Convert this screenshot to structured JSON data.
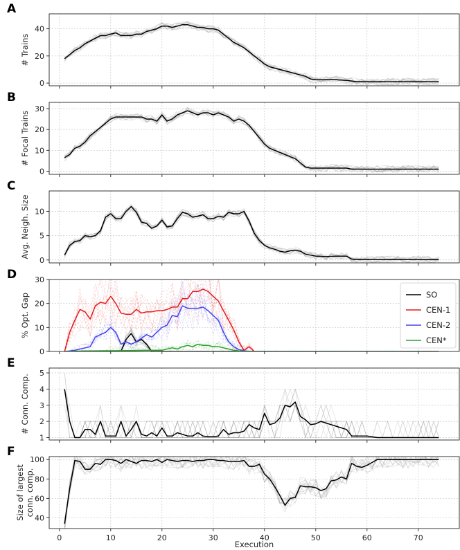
{
  "xlabel": "Execution",
  "x_ticks": [
    0,
    10,
    20,
    30,
    40,
    50,
    60,
    70
  ],
  "xlim": [
    -2,
    78
  ],
  "colors": {
    "SO": "#000000",
    "CEN-1": "#e31a1c",
    "CEN-2": "#4444ee",
    "CEN*": "#2ca02c",
    "runs": "#9a9a9a"
  },
  "chart_data": [
    {
      "letter": "A",
      "type": "line",
      "ylabel": "# Trains",
      "ylim": [
        -2,
        51
      ],
      "y_ticks": [
        0,
        20,
        40
      ],
      "series": [
        {
          "key": "SO",
          "x": [
            1,
            2,
            3,
            4,
            5,
            6,
            7,
            8,
            9,
            10,
            11,
            12,
            13,
            14,
            15,
            16,
            17,
            18,
            19,
            20,
            21,
            22,
            23,
            24,
            25,
            26,
            27,
            28,
            29,
            30,
            31,
            32,
            33,
            34,
            35,
            36,
            37,
            38,
            39,
            40,
            41,
            42,
            43,
            44,
            45,
            46,
            47,
            48,
            49,
            50,
            52,
            54,
            56,
            57,
            58,
            60,
            62,
            65,
            70,
            74
          ],
          "y": [
            18,
            21,
            24,
            26,
            29,
            31,
            33,
            35,
            35,
            36,
            37,
            35,
            35,
            35,
            36,
            36,
            38,
            39,
            40,
            42,
            42,
            41,
            42,
            43,
            43,
            42,
            41,
            41,
            40,
            40,
            39,
            36,
            33,
            30,
            28,
            26,
            23,
            20,
            17,
            14,
            12,
            11,
            10,
            9,
            8,
            7,
            6,
            5,
            3,
            2.5,
            2.5,
            2.5,
            2,
            1.5,
            1,
            1,
            1,
            1,
            1,
            1
          ]
        }
      ]
    },
    {
      "letter": "B",
      "type": "line",
      "ylabel": "# Focal Trains",
      "ylim": [
        -1.5,
        33
      ],
      "y_ticks": [
        0,
        10,
        20,
        30
      ],
      "series": [
        {
          "key": "SO",
          "x": [
            1,
            2,
            3,
            4,
            5,
            6,
            7,
            8,
            9,
            10,
            11,
            12,
            13,
            14,
            15,
            16,
            17,
            18,
            19,
            20,
            21,
            22,
            23,
            24,
            25,
            26,
            27,
            28,
            29,
            30,
            31,
            32,
            33,
            34,
            35,
            36,
            37,
            38,
            39,
            40,
            41,
            42,
            43,
            44,
            45,
            46,
            47,
            48,
            49,
            50,
            52,
            54,
            56,
            57,
            58,
            60,
            62,
            65,
            70,
            74
          ],
          "y": [
            6.5,
            8,
            11,
            12,
            14,
            17,
            19,
            21,
            23,
            25,
            26,
            26,
            26,
            26,
            26,
            26,
            25,
            25,
            24,
            27,
            24,
            25,
            27,
            28,
            29,
            28,
            27,
            28,
            28,
            27,
            28,
            27,
            26,
            24,
            25,
            24,
            22,
            19,
            16,
            13,
            11,
            10,
            9,
            8,
            7,
            6,
            4,
            2,
            1.5,
            1.5,
            1.5,
            1.5,
            1.5,
            1,
            1,
            1,
            1,
            1,
            1,
            1
          ]
        }
      ]
    },
    {
      "letter": "C",
      "type": "line",
      "ylabel": "Avg. Neigh. Size",
      "ylim": [
        -0.6,
        14.2
      ],
      "y_ticks": [
        0,
        5,
        10
      ],
      "series": [
        {
          "key": "SO",
          "x": [
            1,
            2,
            3,
            4,
            5,
            6,
            7,
            8,
            9,
            10,
            11,
            12,
            13,
            14,
            15,
            16,
            17,
            18,
            19,
            20,
            21,
            22,
            23,
            24,
            25,
            26,
            27,
            28,
            29,
            30,
            31,
            32,
            33,
            34,
            35,
            36,
            37,
            38,
            39,
            40,
            41,
            42,
            43,
            44,
            45,
            46,
            47,
            48,
            49,
            50,
            52,
            54,
            56,
            57,
            58,
            60,
            62,
            65,
            70,
            74
          ],
          "y": [
            1,
            3,
            3.8,
            4,
            5,
            4.8,
            5,
            6,
            8.8,
            9.5,
            8.5,
            8.5,
            10,
            11,
            9.8,
            7.8,
            7.5,
            6.5,
            7,
            8.2,
            6.8,
            7,
            8.5,
            9.8,
            9.5,
            8.8,
            9,
            9.3,
            8.5,
            8.5,
            9,
            8.8,
            9.8,
            9.5,
            9.5,
            10,
            8,
            5.5,
            4,
            3,
            2.5,
            2.2,
            1.8,
            1.6,
            1.9,
            2,
            1.8,
            1.2,
            1,
            0.8,
            0.7,
            0.8,
            0.8,
            0.2,
            0.1,
            0.1,
            0.1,
            0.1,
            0.1,
            0.1
          ]
        }
      ]
    },
    {
      "letter": "D",
      "type": "line",
      "ylabel": "% Opt. Gap",
      "ylim": [
        0,
        30
      ],
      "y_ticks": [
        0,
        10,
        20,
        30
      ],
      "legend": {
        "position": "top-right",
        "entries": [
          "SO",
          "CEN-1",
          "CEN-2",
          "CEN*"
        ]
      },
      "series": [
        {
          "key": "SO",
          "name": "SO",
          "x": [
            1,
            5,
            10,
            12,
            13,
            14,
            15,
            16,
            17,
            18,
            19,
            20,
            25,
            30,
            35,
            40,
            50,
            60,
            70,
            74
          ],
          "y": [
            0,
            0,
            0,
            0,
            5,
            7.5,
            4,
            5,
            3,
            0,
            0,
            0,
            0,
            0,
            0,
            0,
            0,
            0,
            0,
            0
          ]
        },
        {
          "key": "CEN-1",
          "name": "CEN-1",
          "x": [
            1,
            2,
            3,
            4,
            5,
            6,
            7,
            8,
            9,
            10,
            11,
            12,
            13,
            14,
            15,
            16,
            17,
            18,
            19,
            20,
            21,
            22,
            23,
            24,
            25,
            26,
            27,
            28,
            29,
            30,
            31,
            32,
            33,
            34,
            35,
            36,
            37,
            38,
            40,
            50,
            60,
            70,
            74
          ],
          "y": [
            0,
            8,
            13,
            17.5,
            16.5,
            13.5,
            19,
            20.5,
            20,
            23,
            20,
            16,
            15.5,
            15.5,
            17.5,
            16,
            16.5,
            16.5,
            17,
            17,
            17.5,
            18.5,
            18.5,
            22,
            22,
            25,
            25,
            26,
            25,
            23,
            21,
            17,
            13,
            9,
            4,
            0.5,
            2,
            0,
            0,
            0,
            0,
            0,
            0
          ]
        },
        {
          "key": "CEN-2",
          "name": "CEN-2",
          "x": [
            1,
            2,
            3,
            4,
            5,
            6,
            7,
            8,
            9,
            10,
            11,
            12,
            13,
            14,
            15,
            16,
            17,
            18,
            19,
            20,
            21,
            22,
            23,
            24,
            25,
            26,
            27,
            28,
            29,
            30,
            31,
            32,
            33,
            34,
            35,
            36,
            37,
            40,
            50,
            60,
            70,
            74
          ],
          "y": [
            0,
            0.2,
            0.5,
            1,
            1.5,
            2,
            6,
            7,
            8,
            10,
            8,
            3,
            4,
            3,
            4,
            5.5,
            7,
            6,
            8,
            10,
            11,
            15,
            14.5,
            19,
            18,
            18,
            18,
            18.5,
            17,
            15,
            13,
            8,
            4,
            2,
            0.8,
            0.3,
            0,
            0,
            0,
            0,
            0,
            0
          ]
        },
        {
          "key": "CEN*",
          "name": "CEN*",
          "x": [
            1,
            5,
            10,
            15,
            18,
            20,
            21,
            22,
            23,
            24,
            25,
            26,
            27,
            28,
            29,
            30,
            31,
            32,
            33,
            34,
            35,
            37,
            40,
            50,
            60,
            70,
            74
          ],
          "y": [
            0,
            0.2,
            0.3,
            0.4,
            0.5,
            0.5,
            1,
            1.5,
            1,
            2,
            2.5,
            2,
            3,
            2.5,
            2.5,
            2,
            2,
            1.5,
            1,
            0.5,
            0.2,
            0,
            0,
            0,
            0,
            0,
            0
          ]
        }
      ]
    },
    {
      "letter": "E",
      "type": "line",
      "ylabel": "# Conn. Comp.",
      "ylim": [
        0.85,
        5.3
      ],
      "y_ticks": [
        1,
        2,
        3,
        4,
        5
      ],
      "series": [
        {
          "key": "SO",
          "x": [
            1,
            2,
            3,
            4,
            5,
            6,
            7,
            8,
            9,
            10,
            11,
            12,
            13,
            14,
            15,
            16,
            17,
            18,
            19,
            20,
            21,
            22,
            23,
            24,
            25,
            26,
            27,
            28,
            29,
            30,
            31,
            32,
            33,
            34,
            35,
            36,
            37,
            38,
            39,
            40,
            41,
            42,
            43,
            44,
            45,
            46,
            47,
            48,
            49,
            50,
            51,
            52,
            53,
            54,
            55,
            56,
            57,
            58,
            60,
            62,
            65,
            70,
            74
          ],
          "y": [
            4,
            2,
            1,
            1,
            1.5,
            1.5,
            1.2,
            2,
            1.1,
            1.1,
            1.1,
            2,
            1.1,
            1.5,
            2,
            1.2,
            1.1,
            1.3,
            1.1,
            1.6,
            1.1,
            1.1,
            1.3,
            1.2,
            1.1,
            1.1,
            1.3,
            1.1,
            1.05,
            1.05,
            1.1,
            1.5,
            1.2,
            1.3,
            1.3,
            1.4,
            1.8,
            1.6,
            1.5,
            2.5,
            1.8,
            1.9,
            2.2,
            3,
            2.9,
            3.2,
            2.3,
            2.1,
            1.8,
            1.85,
            2,
            1.9,
            1.8,
            1.7,
            1.6,
            1.5,
            1.1,
            1.1,
            1.1,
            1.0,
            1.0,
            1.0,
            1.0
          ]
        }
      ]
    },
    {
      "letter": "F",
      "type": "line",
      "ylabel": "Size of largest\nconn. comp.",
      "ylim": [
        29,
        103
      ],
      "y_ticks": [
        40,
        60,
        80,
        100
      ],
      "series": [
        {
          "key": "SO",
          "x": [
            1,
            2,
            3,
            4,
            5,
            6,
            7,
            8,
            9,
            10,
            11,
            12,
            13,
            14,
            15,
            16,
            17,
            18,
            19,
            20,
            21,
            22,
            23,
            24,
            25,
            26,
            27,
            28,
            29,
            30,
            31,
            32,
            33,
            34,
            35,
            36,
            37,
            38,
            39,
            40,
            41,
            42,
            43,
            44,
            45,
            46,
            47,
            48,
            49,
            50,
            51,
            52,
            53,
            54,
            55,
            56,
            57,
            58,
            59,
            60,
            61,
            62,
            65,
            70,
            74
          ],
          "y": [
            34,
            70,
            99,
            98,
            90,
            90,
            96,
            95,
            100,
            100,
            99,
            96,
            100,
            98,
            96,
            99,
            99,
            98,
            100,
            97,
            100,
            99,
            98,
            99,
            99,
            98,
            99,
            99,
            100,
            100,
            99,
            99,
            98,
            98,
            98,
            99,
            93,
            93,
            95,
            85,
            80,
            72,
            63,
            53,
            60,
            61,
            73,
            72,
            72,
            71,
            68,
            70,
            78,
            79,
            82,
            80,
            96,
            93,
            92,
            94,
            97,
            100,
            100,
            100,
            100
          ]
        }
      ]
    }
  ]
}
